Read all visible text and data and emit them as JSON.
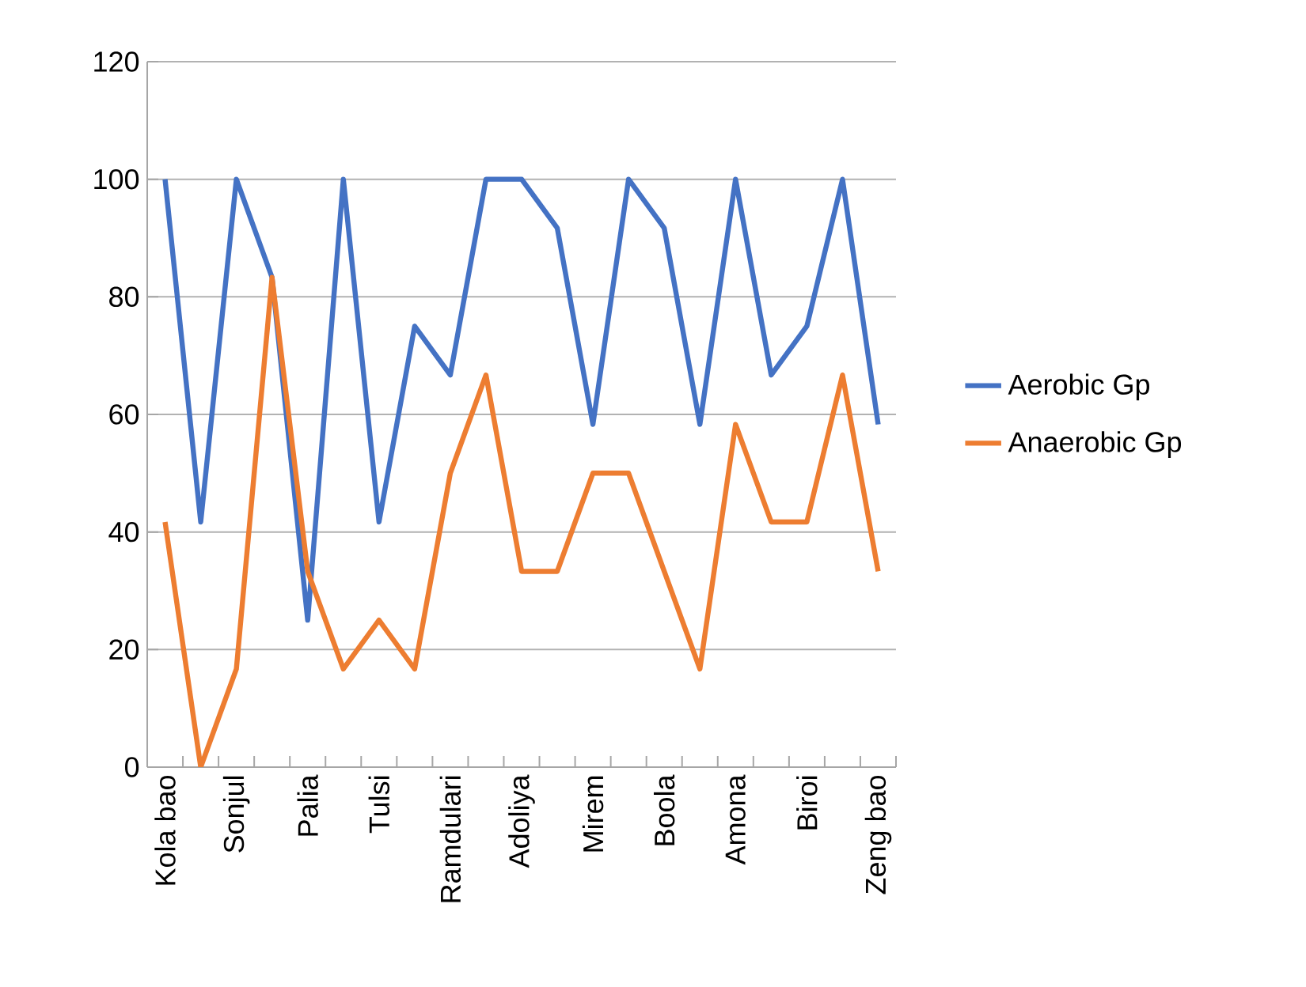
{
  "chart_data": {
    "type": "line",
    "categories": [
      "Kola bao",
      null,
      "Sonjul",
      null,
      "Palia",
      null,
      "Tulsi",
      null,
      "Ramdulari",
      null,
      "Adoliya",
      null,
      "Mirem",
      null,
      "Boola",
      null,
      "Amona",
      null,
      "Biroi",
      null,
      "Zeng bao"
    ],
    "series": [
      {
        "name": "Aerobic Gp",
        "color": "#4472c4",
        "values": [
          100,
          41.7,
          100,
          83.3,
          25,
          100,
          41.7,
          75,
          66.7,
          100,
          100,
          91.7,
          58.3,
          100,
          91.7,
          58.3,
          100,
          66.7,
          75,
          100,
          58.3
        ]
      },
      {
        "name": "Anaerobic Gp",
        "color": "#ed7d31",
        "values": [
          41.7,
          0,
          16.7,
          83.3,
          33.3,
          16.7,
          25,
          16.7,
          50,
          66.7,
          33.3,
          33.3,
          50,
          50,
          33.3,
          16.7,
          58.3,
          41.7,
          41.7,
          66.7,
          33.3
        ]
      }
    ],
    "ylim": [
      0,
      120
    ],
    "yticks": [
      0,
      20,
      40,
      60,
      80,
      100,
      120
    ],
    "grid": "y",
    "legend": "right",
    "marker": "none",
    "line_style": "solid"
  }
}
